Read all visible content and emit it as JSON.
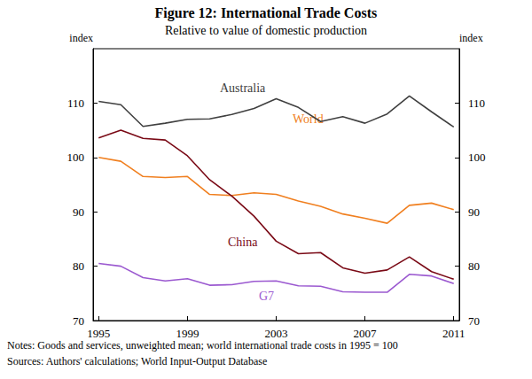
{
  "chart_data": {
    "type": "line",
    "title": "Figure 12: International Trade Costs",
    "subtitle": "Relative to value of domestic production",
    "ylabel": "index",
    "y2label": "index",
    "x": [
      1995,
      1996,
      1997,
      1998,
      1999,
      2000,
      2001,
      2002,
      2003,
      2004,
      2005,
      2006,
      2007,
      2008,
      2009,
      2010,
      2011
    ],
    "xlim": [
      1994.75,
      2011.25
    ],
    "xticks": [
      1995,
      1999,
      2003,
      2007,
      2011
    ],
    "ylim": [
      70,
      120
    ],
    "yticks": [
      70,
      80,
      90,
      100,
      110
    ],
    "y2lim": [
      70,
      120
    ],
    "y2ticks": [
      70,
      80,
      90,
      100,
      110
    ],
    "grid": false,
    "series": [
      {
        "name": "Australia",
        "color": "#404040",
        "values": [
          110.3,
          109.7,
          105.7,
          106.3,
          107.0,
          107.1,
          107.9,
          109.0,
          110.8,
          109.2,
          106.6,
          107.5,
          106.3,
          108.0,
          111.3,
          108.4,
          105.6
        ]
      },
      {
        "name": "World",
        "color": "#f07f1f",
        "values": [
          100.0,
          99.3,
          96.5,
          96.3,
          96.5,
          93.2,
          93.0,
          93.5,
          93.2,
          92.0,
          91.0,
          89.6,
          88.8,
          87.9,
          91.2,
          91.6,
          90.4
        ]
      },
      {
        "name": "China",
        "color": "#7a0a16",
        "values": [
          103.6,
          105.0,
          103.5,
          103.2,
          100.3,
          95.9,
          92.9,
          89.2,
          84.6,
          82.3,
          82.5,
          79.7,
          78.7,
          79.3,
          81.7,
          79.0,
          77.6
        ]
      },
      {
        "name": "G7",
        "color": "#9b59d0",
        "values": [
          80.5,
          80.0,
          77.9,
          77.3,
          77.7,
          76.5,
          76.6,
          77.2,
          77.3,
          76.4,
          76.3,
          75.3,
          75.2,
          75.2,
          78.5,
          78.2,
          76.8
        ]
      }
    ],
    "notes": "Notes: Goods and services, unweighted mean; world international trade costs in 1995 = 100",
    "sources": "Sources: Authors' calculations; World Input-Output Database"
  }
}
